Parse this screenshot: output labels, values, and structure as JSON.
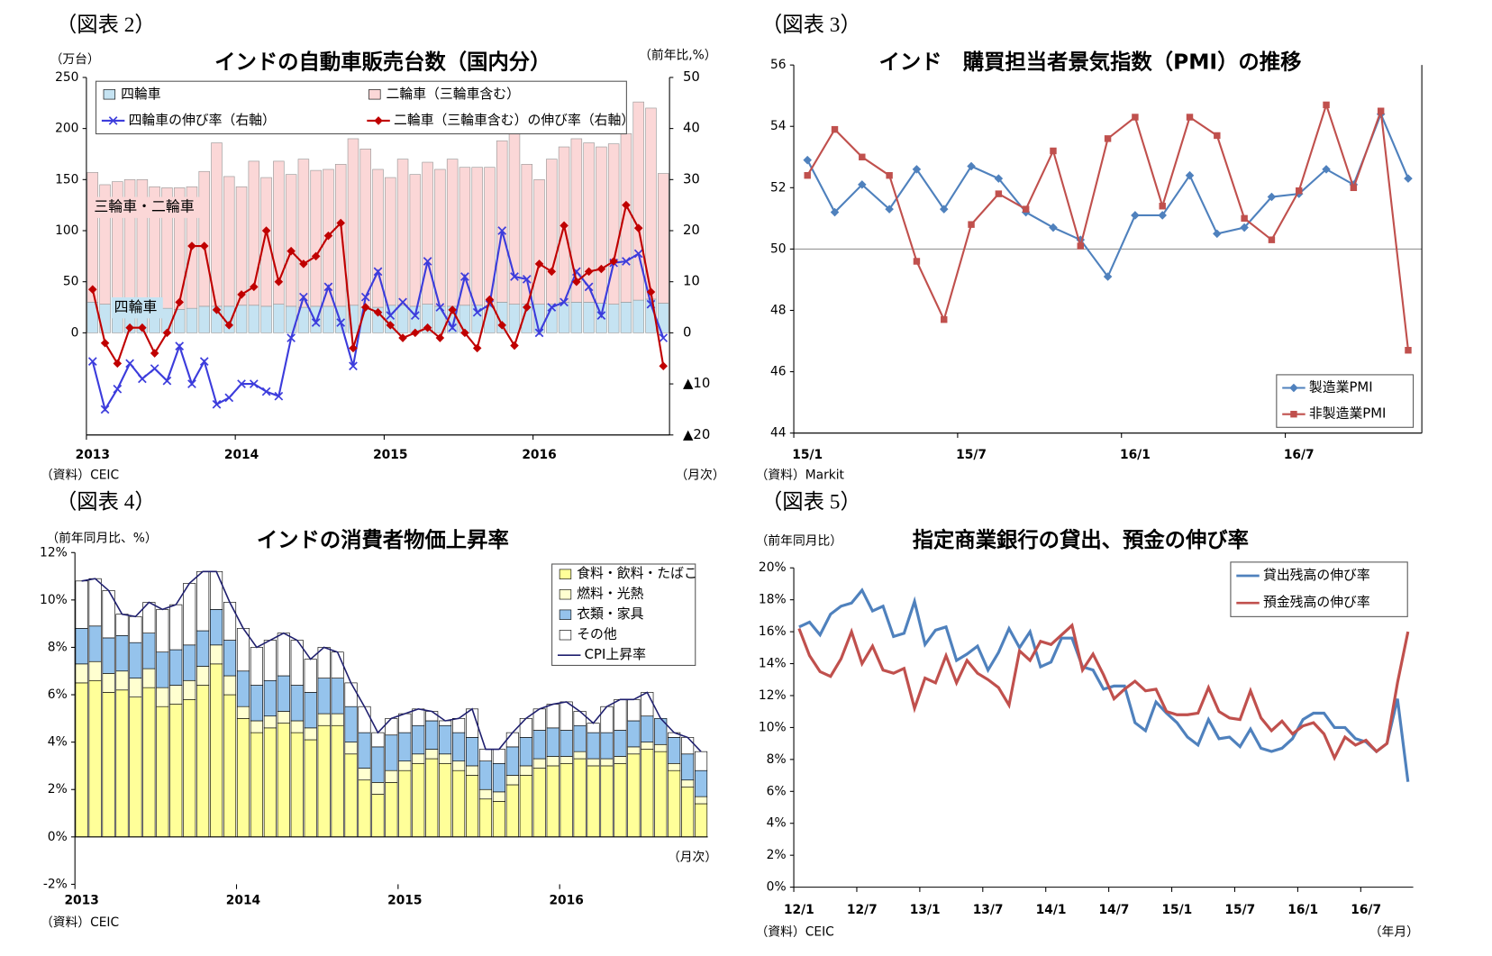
{
  "chart_data": [
    {
      "type": "combo",
      "figure_label": "（図表 2）",
      "title": "インドの自動車販売台数（国内分）",
      "y_unit": "（万台）",
      "y2_unit": "（前年比,%）",
      "x_unit": "（月次）",
      "source": "（資料）CEIC",
      "legend": "top",
      "annotations": [
        "三輪車・二輪車",
        "四輪車"
      ],
      "categories": [
        "2013",
        null,
        null,
        null,
        null,
        null,
        null,
        null,
        null,
        null,
        null,
        null,
        "2014",
        null,
        null,
        null,
        null,
        null,
        null,
        null,
        null,
        null,
        null,
        null,
        "2015",
        null,
        null,
        null,
        null,
        null,
        null,
        null,
        null,
        null,
        null,
        null,
        "2016",
        null,
        null,
        null,
        null,
        null,
        null,
        null,
        null,
        null,
        null
      ],
      "ylim": [
        -100,
        250
      ],
      "yticks": [
        0,
        50,
        100,
        150,
        200,
        250
      ],
      "y2lim": [
        -20,
        50
      ],
      "y2ticks": [
        {
          "value": -20,
          "label": "▲20"
        },
        {
          "value": -10,
          "label": "▲10"
        },
        0,
        10,
        20,
        30,
        40,
        50
      ],
      "series": [
        {
          "name": "四輪車",
          "kind": "bar",
          "color": "#c5e3f2",
          "values": [
            30,
            28,
            27,
            26,
            26,
            24,
            24,
            23,
            24,
            26,
            26,
            26,
            27,
            27,
            26,
            28,
            26,
            25,
            26,
            26,
            26,
            27,
            25,
            25,
            27,
            27,
            26,
            28,
            26,
            26,
            27,
            27,
            26,
            30,
            28,
            28,
            28,
            28,
            30,
            30,
            30,
            29,
            28,
            30,
            32,
            33,
            29
          ]
        },
        {
          "name": "二輪車（三輪車含む）",
          "kind": "bar",
          "color": "#fbd7d7",
          "values": [
            127,
            117,
            121,
            124,
            124,
            119,
            118,
            119,
            119,
            132,
            160,
            127,
            116,
            141,
            126,
            140,
            129,
            145,
            133,
            134,
            139,
            163,
            155,
            135,
            125,
            143,
            129,
            139,
            134,
            144,
            135,
            135,
            136,
            158,
            167,
            137,
            122,
            142,
            152,
            160,
            156,
            153,
            157,
            165,
            194,
            187,
            127
          ]
        },
        {
          "name": "四輪車の伸び率（右軸）",
          "kind": "line",
          "axis": "y2",
          "marker": "x",
          "color": "#3c3cdc",
          "values": [
            -5.6,
            -15,
            -11,
            -6,
            -9,
            -7,
            -9.4,
            -2.6,
            -10,
            -5.6,
            -14,
            -12.7,
            -10,
            -10,
            -11.5,
            -12.4,
            -1,
            7,
            2,
            9,
            2,
            -6.5,
            7,
            12,
            3.4,
            6,
            3.4,
            14,
            5,
            1,
            11,
            4,
            5.6,
            20,
            11,
            10.5,
            0,
            5,
            6,
            12,
            9,
            3.4,
            13.7,
            14,
            15.5,
            5.6,
            -1
          ]
        },
        {
          "name": "二輪車（三輪車含む）の伸び率（右軸）",
          "kind": "line",
          "axis": "y2",
          "marker": "diamond",
          "color": "#c00000",
          "values": [
            8.5,
            -2,
            -6,
            1,
            1,
            -4,
            0,
            6,
            17,
            17,
            4.5,
            1.5,
            7.5,
            9,
            20,
            10,
            16,
            13.5,
            15,
            19,
            21.5,
            -3,
            5,
            4,
            1.5,
            -1,
            0,
            1,
            -1,
            4.5,
            0,
            -3,
            6.5,
            1.5,
            -2.5,
            5,
            13.5,
            12,
            21,
            10,
            12,
            12.5,
            14,
            25,
            20.5,
            8,
            -6.5
          ]
        }
      ]
    },
    {
      "type": "line",
      "figure_label": "（図表 3）",
      "title": "インド　購買担当者景気指数（PMI）の推移",
      "source": "（資料）Markit",
      "legend": "lower right",
      "categories": [
        "15/1",
        null,
        null,
        null,
        null,
        null,
        "15/7",
        null,
        null,
        null,
        null,
        null,
        "16/1",
        null,
        null,
        null,
        null,
        null,
        "16/7",
        null,
        null,
        null,
        null
      ],
      "ylim": [
        44,
        56
      ],
      "yticks": [
        44,
        46,
        48,
        50,
        52,
        54,
        56
      ],
      "hline": 50,
      "series": [
        {
          "name": "製造業PMI",
          "kind": "line",
          "marker": "diamond",
          "color": "#4f81bd",
          "values": [
            52.9,
            51.2,
            52.1,
            51.3,
            52.6,
            51.3,
            52.7,
            52.3,
            51.2,
            50.7,
            50.3,
            49.1,
            51.1,
            51.1,
            52.4,
            50.5,
            50.7,
            51.7,
            51.8,
            52.6,
            52.1,
            54.4,
            52.3
          ]
        },
        {
          "name": "非製造業PMI",
          "kind": "line",
          "marker": "square",
          "color": "#c0504d",
          "values": [
            52.4,
            53.9,
            53.0,
            52.4,
            49.6,
            47.7,
            50.8,
            51.8,
            51.3,
            53.2,
            50.1,
            53.6,
            54.3,
            51.4,
            54.3,
            53.7,
            51.0,
            50.3,
            51.9,
            54.7,
            52.0,
            54.5,
            46.7
          ]
        }
      ]
    },
    {
      "type": "combo",
      "figure_label": "（図表 4）",
      "title": "インドの消費者物価上昇率",
      "y_unit": "（前年同月比、%）",
      "x_unit": "（月次）",
      "source": "（資料）CEIC",
      "legend": "upper right",
      "categories": [
        "2013",
        null,
        null,
        null,
        null,
        null,
        null,
        null,
        null,
        null,
        null,
        null,
        "2014",
        null,
        null,
        null,
        null,
        null,
        null,
        null,
        null,
        null,
        null,
        null,
        "2015",
        null,
        null,
        null,
        null,
        null,
        null,
        null,
        null,
        null,
        null,
        null,
        "2016",
        null,
        null,
        null,
        null,
        null,
        null,
        null,
        null,
        null,
        null
      ],
      "ylim": [
        -2,
        12
      ],
      "yticks": [
        {
          "value": -2,
          "label": "-2%"
        },
        {
          "value": 0,
          "label": "0%"
        },
        {
          "value": 2,
          "label": "2%"
        },
        {
          "value": 4,
          "label": "4%"
        },
        {
          "value": 6,
          "label": "6%"
        },
        {
          "value": 8,
          "label": "8%"
        },
        {
          "value": 10,
          "label": "10%"
        },
        {
          "value": 12,
          "label": "12%"
        }
      ],
      "series": [
        {
          "name": "食料・飲料・たばこ",
          "kind": "bar",
          "color": "#ffff99",
          "values": [
            6.5,
            6.6,
            6.1,
            6.2,
            5.9,
            6.3,
            5.5,
            5.6,
            5.8,
            6.4,
            7.3,
            6.0,
            5.0,
            4.4,
            4.6,
            4.8,
            4.4,
            4.1,
            4.7,
            4.7,
            3.5,
            2.4,
            1.8,
            2.3,
            2.8,
            3.1,
            3.3,
            3.1,
            2.8,
            2.6,
            1.6,
            1.5,
            2.2,
            2.6,
            2.9,
            3.0,
            3.1,
            3.3,
            3.0,
            3.0,
            3.1,
            3.5,
            3.7,
            3.6,
            2.8,
            2.1,
            1.4
          ]
        },
        {
          "name": "燃料・光熱",
          "kind": "bar",
          "color": "#ffffd0",
          "values": [
            0.8,
            0.8,
            0.8,
            0.8,
            0.8,
            0.8,
            0.8,
            0.8,
            0.8,
            0.8,
            0.8,
            0.8,
            0.5,
            0.5,
            0.5,
            0.5,
            0.5,
            0.5,
            0.5,
            0.5,
            0.5,
            0.5,
            0.5,
            0.5,
            0.4,
            0.4,
            0.4,
            0.4,
            0.4,
            0.4,
            0.4,
            0.4,
            0.4,
            0.4,
            0.4,
            0.4,
            0.3,
            0.3,
            0.3,
            0.3,
            0.3,
            0.3,
            0.3,
            0.3,
            0.3,
            0.3,
            0.3
          ]
        },
        {
          "name": "衣類・家具",
          "kind": "bar",
          "color": "#95c3ec",
          "values": [
            1.5,
            1.5,
            1.5,
            1.5,
            1.5,
            1.5,
            1.5,
            1.5,
            1.5,
            1.5,
            1.5,
            1.5,
            1.5,
            1.5,
            1.5,
            1.5,
            1.5,
            1.5,
            1.5,
            1.5,
            1.5,
            1.5,
            1.5,
            1.5,
            1.2,
            1.2,
            1.2,
            1.2,
            1.2,
            1.2,
            1.2,
            1.2,
            1.2,
            1.2,
            1.2,
            1.2,
            1.1,
            1.1,
            1.1,
            1.1,
            1.1,
            1.1,
            1.1,
            1.1,
            1.1,
            1.1,
            1.1
          ]
        },
        {
          "name": "その他",
          "kind": "bar",
          "color": "#ffffff",
          "values": [
            2.0,
            2.0,
            2.0,
            0.9,
            1.1,
            1.3,
            1.8,
            1.9,
            2.6,
            2.5,
            1.6,
            1.6,
            1.8,
            1.6,
            1.7,
            1.8,
            1.9,
            1.4,
            1.3,
            1.1,
            1.0,
            1.1,
            0.6,
            0.7,
            0.8,
            0.7,
            0.4,
            0.2,
            0.6,
            1.2,
            0.5,
            0.6,
            0.6,
            0.8,
            0.9,
            1.0,
            1.2,
            0.6,
            0.4,
            1.1,
            1.3,
            0.9,
            1.0,
            0.0,
            0.2,
            0.7,
            0.8
          ]
        },
        {
          "name": "CPI上昇率",
          "kind": "line",
          "color": "#1f1f6e",
          "values": [
            10.8,
            10.9,
            10.4,
            9.4,
            9.3,
            9.9,
            9.6,
            9.8,
            10.7,
            11.2,
            11.2,
            9.9,
            8.8,
            8.0,
            8.3,
            8.6,
            8.3,
            7.5,
            8.0,
            7.8,
            6.5,
            5.5,
            4.4,
            5.0,
            5.2,
            5.4,
            5.3,
            4.9,
            5.0,
            5.4,
            3.7,
            3.7,
            4.4,
            5.0,
            5.4,
            5.6,
            5.7,
            5.3,
            4.8,
            5.5,
            5.8,
            5.8,
            6.1,
            5.0,
            4.4,
            4.2,
            3.6
          ]
        }
      ]
    },
    {
      "type": "line",
      "figure_label": "（図表 5）",
      "title": "指定商業銀行の貸出、預金の伸び率",
      "y_unit": "（前年同月比）",
      "x_unit": "（年月）",
      "source": "（資料）CEIC",
      "legend": "upper right",
      "categories": [
        "12/1",
        null,
        null,
        null,
        null,
        null,
        "12/7",
        null,
        null,
        null,
        null,
        null,
        "13/1",
        null,
        null,
        null,
        null,
        null,
        "13/7",
        null,
        null,
        null,
        null,
        null,
        "14/1",
        null,
        null,
        null,
        null,
        null,
        "14/7",
        null,
        null,
        null,
        null,
        null,
        "15/1",
        null,
        null,
        null,
        null,
        null,
        "15/7",
        null,
        null,
        null,
        null,
        null,
        "16/1",
        null,
        null,
        null,
        null,
        null,
        "16/7",
        null,
        null,
        null,
        null
      ],
      "ylim": [
        0,
        20
      ],
      "yticks": [
        {
          "value": 0,
          "label": "0%"
        },
        {
          "value": 2,
          "label": "2%"
        },
        {
          "value": 4,
          "label": "4%"
        },
        {
          "value": 6,
          "label": "6%"
        },
        {
          "value": 8,
          "label": "8%"
        },
        {
          "value": 10,
          "label": "10%"
        },
        {
          "value": 12,
          "label": "12%"
        },
        {
          "value": 14,
          "label": "14%"
        },
        {
          "value": 16,
          "label": "16%"
        },
        {
          "value": 18,
          "label": "18%"
        },
        {
          "value": 20,
          "label": "20%"
        }
      ],
      "series": [
        {
          "name": "貸出残高の伸び率",
          "kind": "line",
          "color": "#4f81bd",
          "values": [
            16.3,
            16.6,
            15.8,
            17.1,
            17.6,
            17.8,
            18.6,
            17.3,
            17.6,
            15.7,
            15.9,
            17.9,
            15.2,
            16.1,
            16.3,
            14.2,
            14.6,
            15.1,
            13.6,
            14.7,
            16.2,
            15.0,
            16.0,
            13.8,
            14.1,
            15.6,
            15.6,
            13.8,
            13.6,
            12.4,
            12.6,
            12.6,
            10.3,
            9.8,
            11.6,
            10.9,
            10.3,
            9.4,
            8.9,
            10.5,
            9.3,
            9.4,
            8.8,
            9.9,
            8.7,
            8.5,
            8.7,
            9.3,
            10.5,
            10.9,
            10.9,
            10.0,
            10.0,
            9.3,
            9.1,
            8.5,
            9.0,
            11.8,
            6.6
          ]
        },
        {
          "name": "預金残高の伸び率",
          "kind": "line",
          "color": "#c0504d",
          "values": [
            16.2,
            14.5,
            13.5,
            13.2,
            14.3,
            16.0,
            14.0,
            15.1,
            13.6,
            13.4,
            13.7,
            11.2,
            13.1,
            12.8,
            14.5,
            12.8,
            14.2,
            13.4,
            13.0,
            12.5,
            11.4,
            14.8,
            14.2,
            15.4,
            15.2,
            15.8,
            16.4,
            13.6,
            14.6,
            13.3,
            11.8,
            12.4,
            12.9,
            12.3,
            12.4,
            11.0,
            10.8,
            10.8,
            10.9,
            12.5,
            11.0,
            10.6,
            10.5,
            12.3,
            10.6,
            9.8,
            10.4,
            9.6,
            10.1,
            10.3,
            9.6,
            8.1,
            9.4,
            8.9,
            9.2,
            8.5,
            9.0,
            12.8,
            16.0
          ]
        }
      ]
    }
  ]
}
